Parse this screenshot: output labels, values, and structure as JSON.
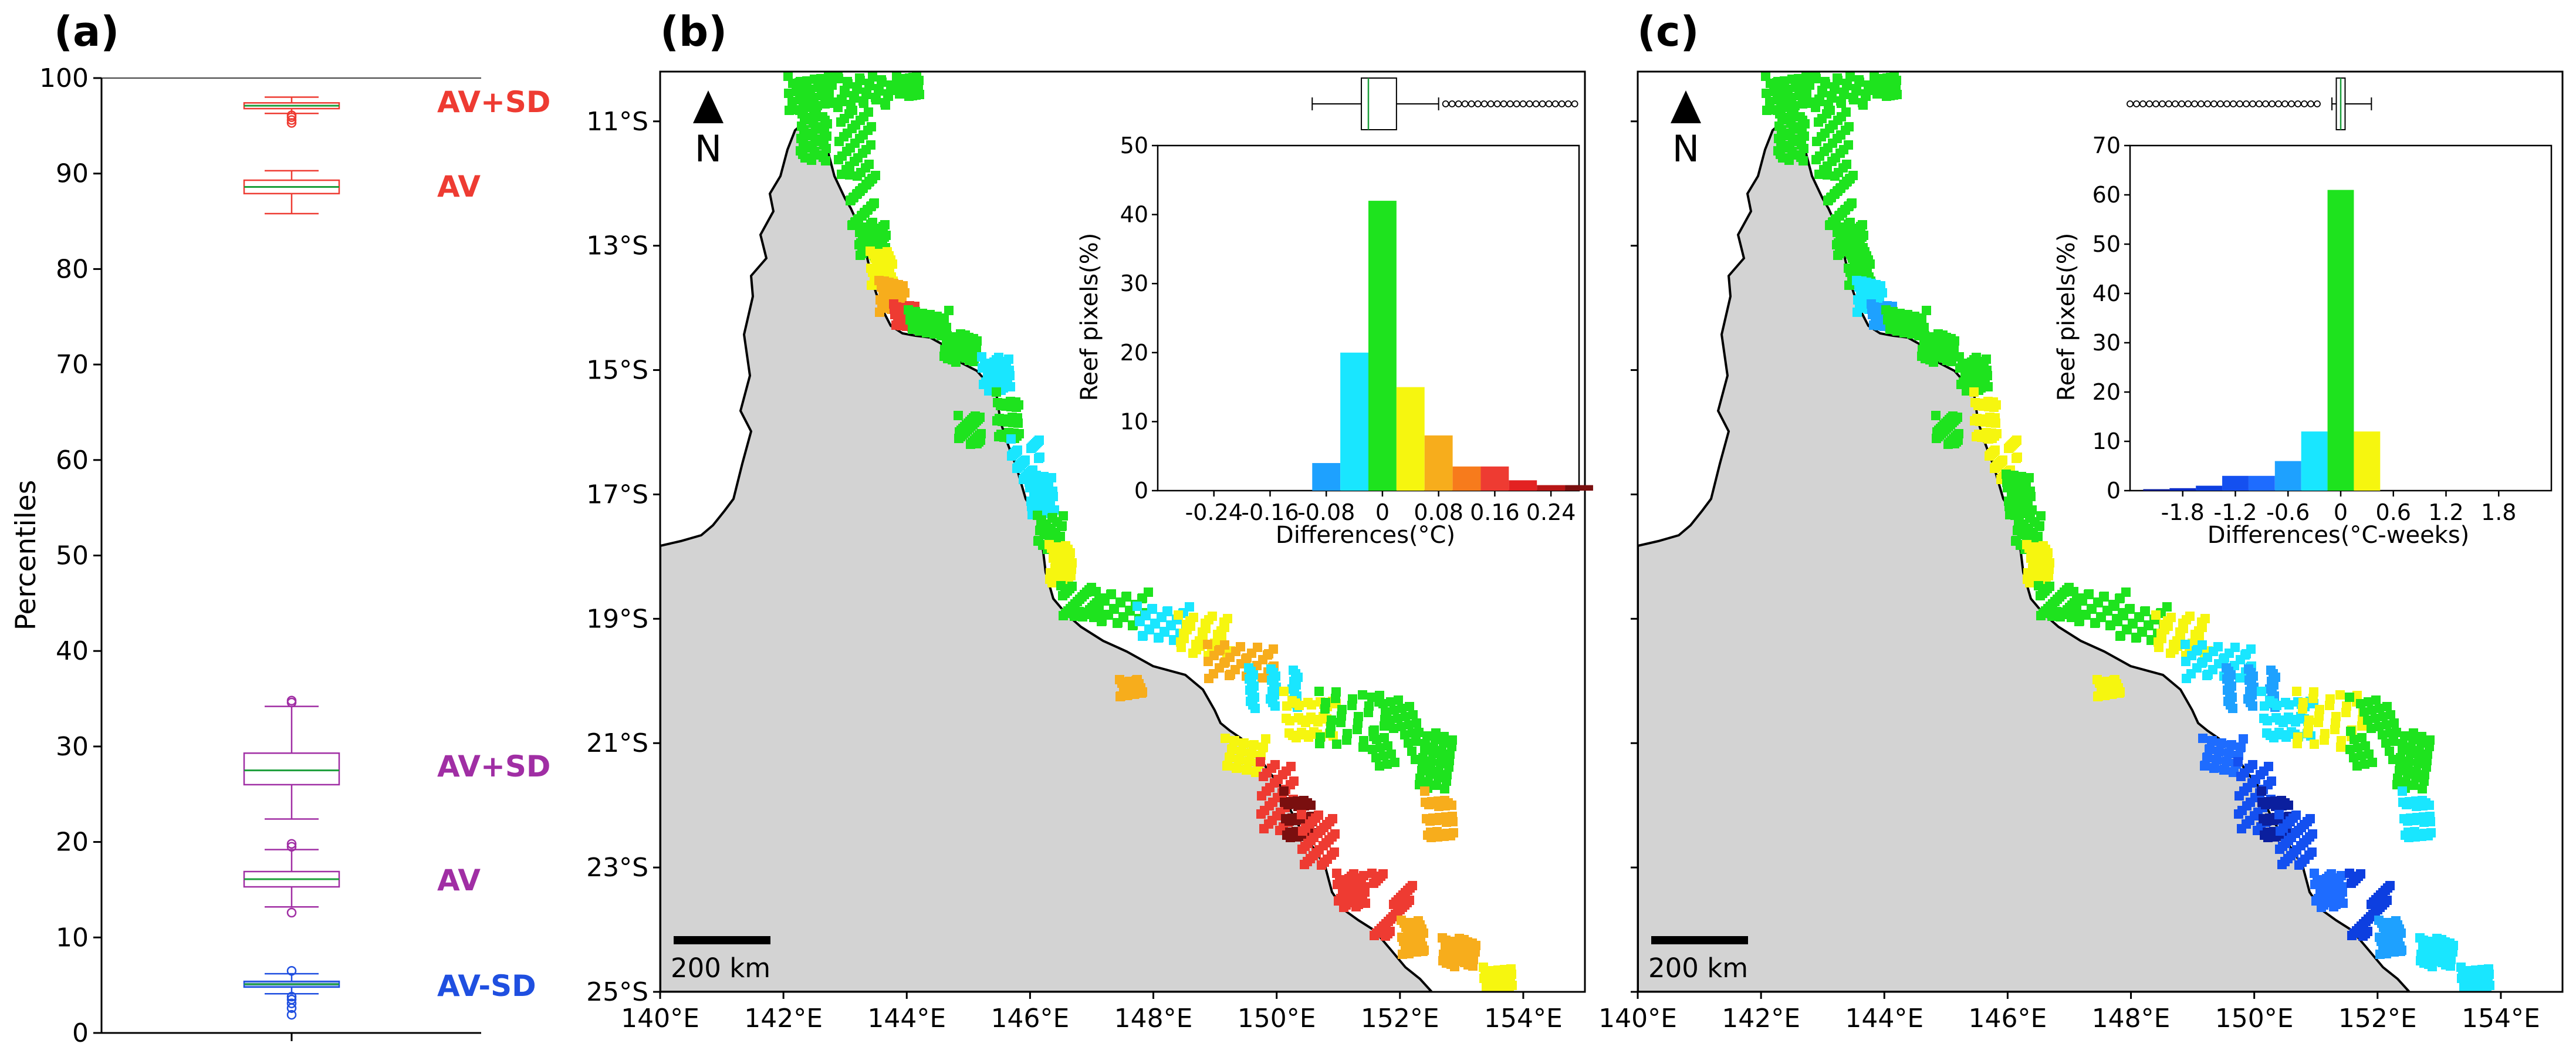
{
  "panel_labels": [
    "(a)",
    "(b)",
    "(c)"
  ],
  "colors": {
    "red": "#ee3b32",
    "magenta": "#a02ea4",
    "blue": "#1f4fe0",
    "median": "#1b9e3a",
    "land": "#d3d3d3",
    "coast": "#000000"
  },
  "panel_a": {
    "ylabel": "Percentiles",
    "ylim": [
      0,
      100
    ],
    "yticks": [
      "0",
      "10",
      "20",
      "30",
      "40",
      "50",
      "60",
      "70",
      "80",
      "90",
      "100"
    ],
    "group_labels": [
      "AV+SD",
      "AV",
      "AV+SD",
      "AV",
      "AV-SD"
    ]
  },
  "map_b": {
    "north_label": "N",
    "scale_label": "200 km",
    "lat_labels": [
      "11°S",
      "13°S",
      "15°S",
      "17°S",
      "19°S",
      "21°S",
      "23°S",
      "25°S"
    ],
    "lon_labels": [
      "140°E",
      "142°E",
      "144°E",
      "146°E",
      "148°E",
      "150°E",
      "152°E",
      "154°E"
    ]
  },
  "map_c": {
    "north_label": "N",
    "scale_label": "200 km",
    "lon_labels": [
      "140°E",
      "142°E",
      "144°E",
      "146°E",
      "148°E",
      "150°E",
      "152°E",
      "154°E"
    ]
  },
  "inset_b": {
    "ylabel": "Reef pixels(%)",
    "xlabel": "Differences(°C)",
    "xticks": [
      "-0.24",
      "-0.16",
      "-0.08",
      "0",
      "0.08",
      "0.16",
      "0.24"
    ],
    "yticks": [
      "0",
      "10",
      "20",
      "30",
      "40",
      "50"
    ]
  },
  "inset_c": {
    "ylabel": "Reef pixels(%)",
    "xlabel": "Differences(°C-weeks)",
    "xticks": [
      "-1.8",
      "-1.2",
      "-0.6",
      "0",
      "0.6",
      "1.2",
      "1.8"
    ],
    "yticks": [
      "0",
      "10",
      "20",
      "30",
      "40",
      "50",
      "60",
      "70"
    ]
  },
  "chart_data": [
    {
      "type": "box",
      "panel": "(a)",
      "ylabel": "Percentiles",
      "ylim": [
        0,
        100
      ],
      "boxes": [
        {
          "label": "AV+SD",
          "color": "#ee3b32",
          "whisker_low": 96.3,
          "q1": 96.8,
          "median": 97.1,
          "q3": 97.4,
          "whisker_high": 98.0,
          "outliers": [
            95.3,
            95.6,
            95.9,
            96.1
          ]
        },
        {
          "label": "AV",
          "color": "#ee3b32",
          "whisker_low": 85.8,
          "q1": 87.9,
          "median": 88.6,
          "q3": 89.3,
          "whisker_high": 90.3,
          "outliers": []
        },
        {
          "label": "AV+SD",
          "color": "#a02ea4",
          "whisker_low": 22.4,
          "q1": 26.0,
          "median": 27.5,
          "q3": 29.3,
          "whisker_high": 34.2,
          "outliers": [
            34.6,
            34.8
          ]
        },
        {
          "label": "AV",
          "color": "#a02ea4",
          "whisker_low": 13.2,
          "q1": 15.3,
          "median": 16.1,
          "q3": 16.9,
          "whisker_high": 19.2,
          "outliers": [
            12.6,
            19.5,
            19.8
          ]
        },
        {
          "label": "AV-SD",
          "color": "#1f4fe0",
          "whisker_low": 4.1,
          "q1": 4.8,
          "median": 5.1,
          "q3": 5.4,
          "whisker_high": 6.2,
          "outliers": [
            1.9,
            2.6,
            3.1,
            3.5,
            3.8,
            6.5
          ]
        }
      ]
    },
    {
      "type": "bar",
      "panel": "(b) inset",
      "xlabel": "Differences(°C)",
      "ylabel": "Reef pixels(%)",
      "ylim": [
        0,
        50
      ],
      "xlim": [
        -0.32,
        0.28
      ],
      "bin_width": 0.04,
      "bins": [
        {
          "x": -0.08,
          "value": 4,
          "color": "#1ea1ff"
        },
        {
          "x": -0.04,
          "value": 20,
          "color": "#19e6ff"
        },
        {
          "x": 0.0,
          "value": 42,
          "color": "#1ee31e"
        },
        {
          "x": 0.04,
          "value": 15,
          "color": "#f6f60f"
        },
        {
          "x": 0.08,
          "value": 8,
          "color": "#f7ad1c"
        },
        {
          "x": 0.12,
          "value": 3.5,
          "color": "#f77b1c"
        },
        {
          "x": 0.16,
          "value": 3.5,
          "color": "#ee3b32"
        },
        {
          "x": 0.2,
          "value": 1.5,
          "color": "#e32222"
        },
        {
          "x": 0.24,
          "value": 0.8,
          "color": "#b81616"
        },
        {
          "x": 0.28,
          "value": 0.8,
          "color": "#7a0f0f"
        }
      ],
      "boxplot": {
        "min": -0.1,
        "q1": -0.03,
        "median": -0.02,
        "q3": 0.02,
        "max": 0.08,
        "outliers_range": [
          0.09,
          0.28
        ]
      }
    },
    {
      "type": "bar",
      "panel": "(c) inset",
      "xlabel": "Differences(°C-weeks)",
      "ylabel": "Reef pixels(%)",
      "ylim": [
        0,
        70
      ],
      "xlim": [
        -2.4,
        2.4
      ],
      "bin_width": 0.3,
      "bins": [
        {
          "x": -2.1,
          "value": 0.3,
          "color": "#0b1f9e"
        },
        {
          "x": -1.8,
          "value": 0.5,
          "color": "#0d2cc7"
        },
        {
          "x": -1.5,
          "value": 1,
          "color": "#0d3fe0"
        },
        {
          "x": -1.2,
          "value": 3,
          "color": "#1450f0"
        },
        {
          "x": -0.9,
          "value": 3,
          "color": "#1e6cff"
        },
        {
          "x": -0.6,
          "value": 6,
          "color": "#1ea1ff"
        },
        {
          "x": -0.3,
          "value": 12,
          "color": "#19e6ff"
        },
        {
          "x": 0.0,
          "value": 61,
          "color": "#1ee31e"
        },
        {
          "x": 0.3,
          "value": 12,
          "color": "#f6f60f"
        }
      ],
      "boxplot": {
        "min": -0.1,
        "q1": -0.05,
        "median": 0.0,
        "q3": 0.05,
        "max": 0.35,
        "outliers_range": [
          -2.4,
          -0.2
        ]
      }
    }
  ]
}
